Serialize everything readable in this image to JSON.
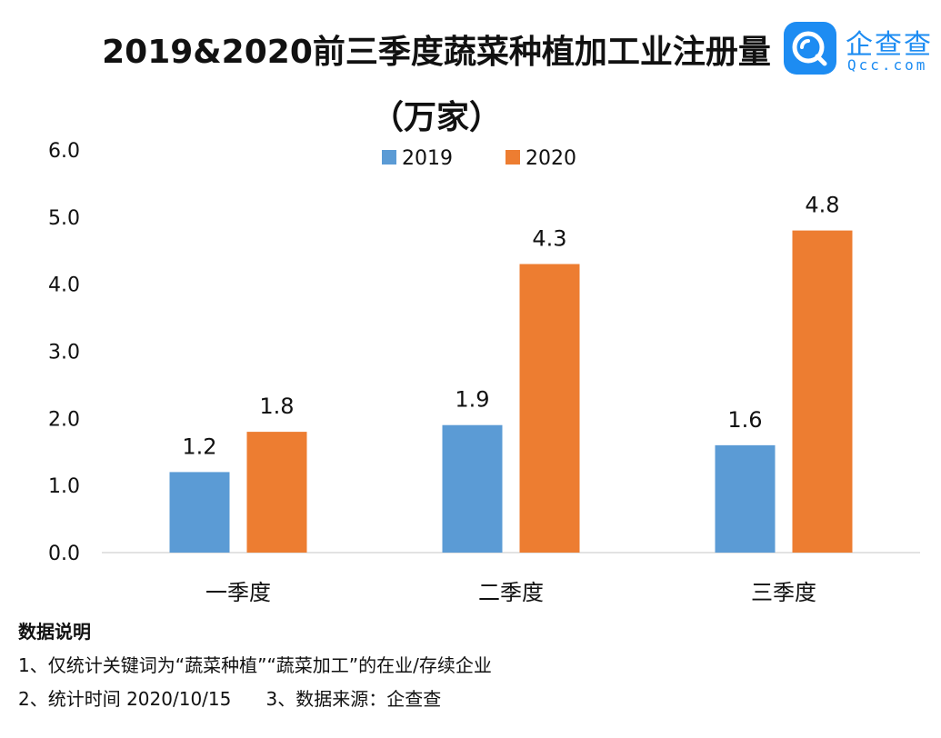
{
  "header": {
    "title_line1": "2019&2020前三季度蔬菜种植加工业注册量",
    "title_line2": "（万家）"
  },
  "logo": {
    "icon": "qcc-logo-icon",
    "name": "企查查",
    "domain": "Qcc.com",
    "color": "#1d8cf2"
  },
  "chart_data": {
    "type": "bar",
    "title": "2019&2020前三季度蔬菜种植加工业注册量（万家）",
    "categories": [
      "一季度",
      "二季度",
      "三季度"
    ],
    "series": [
      {
        "name": "2019",
        "values": [
          1.2,
          1.9,
          1.6
        ],
        "color": "#5b9bd5"
      },
      {
        "name": "2020",
        "values": [
          1.8,
          4.3,
          4.8
        ],
        "color": "#ed7d31"
      }
    ],
    "y_ticks": [
      "0.0",
      "1.0",
      "2.0",
      "3.0",
      "4.0",
      "5.0",
      "6.0"
    ],
    "ylim": [
      0,
      6
    ],
    "grid": false,
    "legend_position": "top-center"
  },
  "notes": {
    "heading": "数据说明",
    "line1": "1、仅统计关键词为“蔬菜种植”“蔬菜加工”的在业/存续企业",
    "line2": "2、统计时间 2020/10/15      3、数据来源：企查查"
  }
}
